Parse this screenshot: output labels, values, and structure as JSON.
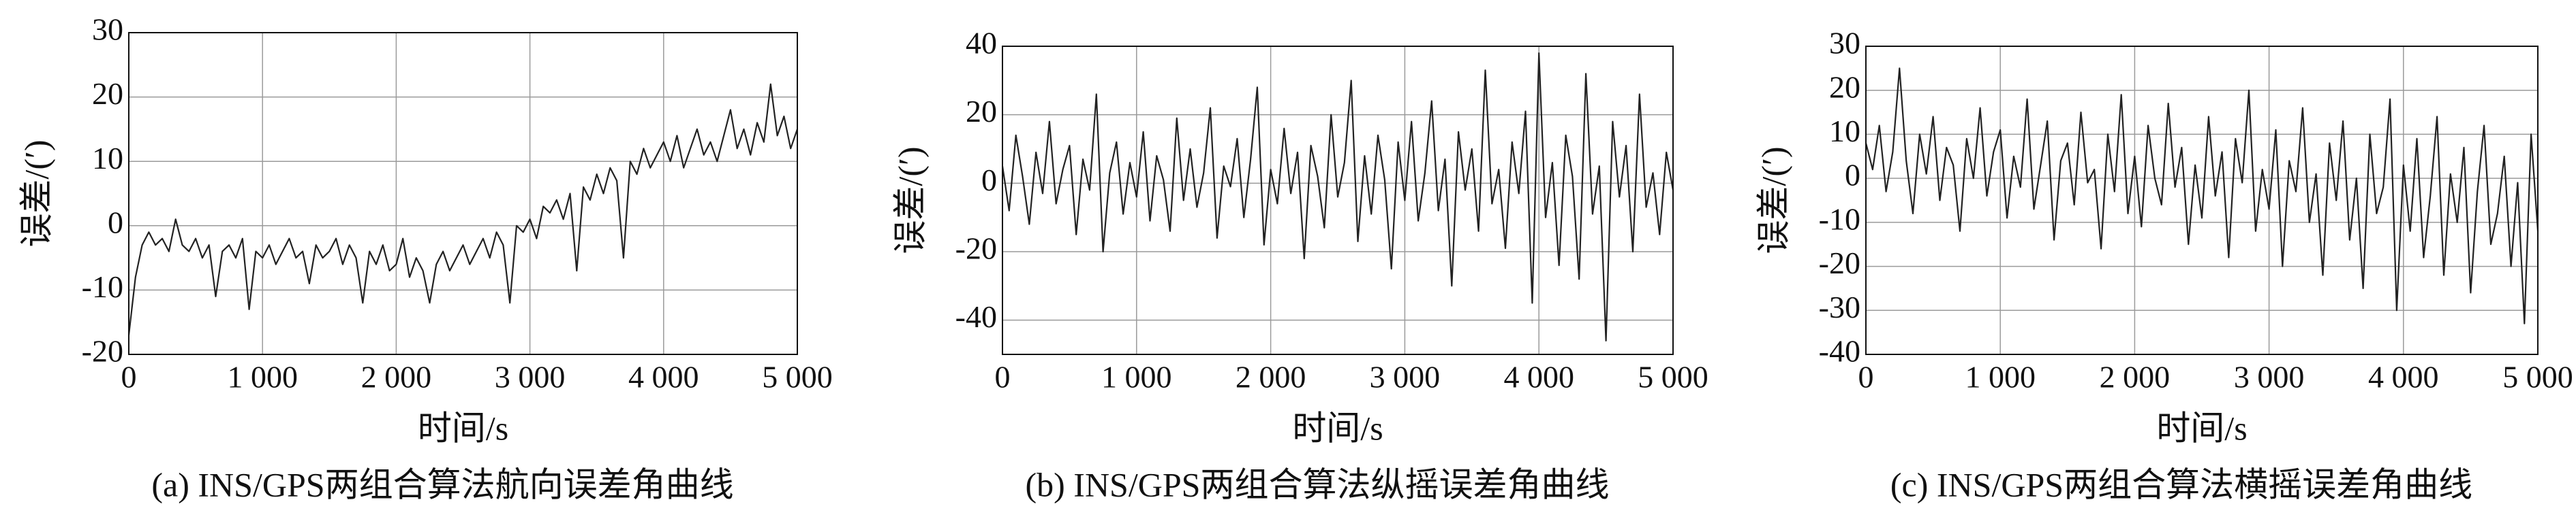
{
  "chart_data": [
    {
      "type": "line",
      "caption": "(a) INS/GPS两组合算法航向误差角曲线",
      "xlabel": "时间/s",
      "ylabel": "误差/(′)",
      "color": "#222222",
      "grid": true,
      "xlim": [
        0,
        5000
      ],
      "xticks": [
        0,
        {
          "value": 1000,
          "label": "1 000"
        },
        {
          "value": 2000,
          "label": "2 000"
        },
        {
          "value": 3000,
          "label": "3 000"
        },
        {
          "value": 4000,
          "label": "4 000"
        },
        {
          "value": 5000,
          "label": "5 000"
        }
      ],
      "ylim": [
        -20,
        30
      ],
      "yticks": [
        -20,
        -10,
        0,
        10,
        20,
        30
      ],
      "x": [
        0,
        50,
        100,
        150,
        200,
        250,
        300,
        350,
        400,
        450,
        500,
        550,
        600,
        650,
        700,
        750,
        800,
        850,
        900,
        950,
        1000,
        1050,
        1100,
        1150,
        1200,
        1250,
        1300,
        1350,
        1400,
        1450,
        1500,
        1550,
        1600,
        1650,
        1700,
        1750,
        1800,
        1850,
        1900,
        1950,
        2000,
        2050,
        2100,
        2150,
        2200,
        2250,
        2300,
        2350,
        2400,
        2450,
        2500,
        2550,
        2600,
        2650,
        2700,
        2750,
        2800,
        2850,
        2900,
        2950,
        3000,
        3050,
        3100,
        3150,
        3200,
        3250,
        3300,
        3350,
        3400,
        3450,
        3500,
        3550,
        3600,
        3650,
        3700,
        3750,
        3800,
        3850,
        3900,
        3950,
        4000,
        4050,
        4100,
        4150,
        4200,
        4250,
        4300,
        4350,
        4400,
        4450,
        4500,
        4550,
        4600,
        4650,
        4700,
        4750,
        4800,
        4850,
        4900,
        4950,
        5000
      ],
      "values": [
        -17,
        -8,
        -3,
        -1,
        -3,
        -2,
        -4,
        1,
        -3,
        -4,
        -2,
        -5,
        -3,
        -11,
        -4,
        -3,
        -5,
        -2,
        -13,
        -4,
        -5,
        -3,
        -6,
        -4,
        -2,
        -5,
        -4,
        -9,
        -3,
        -5,
        -4,
        -2,
        -6,
        -3,
        -5,
        -12,
        -4,
        -6,
        -3,
        -7,
        -6,
        -2,
        -8,
        -5,
        -7,
        -12,
        -6,
        -4,
        -7,
        -5,
        -3,
        -6,
        -4,
        -2,
        -5,
        -1,
        -3,
        -12,
        0,
        -1,
        1,
        -2,
        3,
        2,
        4,
        1,
        5,
        -7,
        6,
        4,
        8,
        5,
        9,
        7,
        -5,
        10,
        8,
        12,
        9,
        11,
        13,
        10,
        14,
        9,
        12,
        15,
        11,
        13,
        10,
        14,
        18,
        12,
        15,
        11,
        16,
        13,
        22,
        14,
        17,
        12,
        15
      ]
    },
    {
      "type": "line",
      "caption": "(b) INS/GPS两组合算法纵摇误差角曲线",
      "xlabel": "时间/s",
      "ylabel": "误差/(′)",
      "color": "#222222",
      "grid": true,
      "xlim": [
        0,
        5000
      ],
      "xticks": [
        0,
        {
          "value": 1000,
          "label": "1 000"
        },
        {
          "value": 2000,
          "label": "2 000"
        },
        {
          "value": 3000,
          "label": "3 000"
        },
        {
          "value": 4000,
          "label": "4 000"
        },
        {
          "value": 5000,
          "label": "5 000"
        }
      ],
      "ylim": [
        -50,
        40
      ],
      "yticks": [
        -40,
        -20,
        0,
        20,
        40
      ],
      "x": [
        0,
        50,
        100,
        150,
        200,
        250,
        300,
        350,
        400,
        450,
        500,
        550,
        600,
        650,
        700,
        750,
        800,
        850,
        900,
        950,
        1000,
        1050,
        1100,
        1150,
        1200,
        1250,
        1300,
        1350,
        1400,
        1450,
        1500,
        1550,
        1600,
        1650,
        1700,
        1750,
        1800,
        1850,
        1900,
        1950,
        2000,
        2050,
        2100,
        2150,
        2200,
        2250,
        2300,
        2350,
        2400,
        2450,
        2500,
        2550,
        2600,
        2650,
        2700,
        2750,
        2800,
        2850,
        2900,
        2950,
        3000,
        3050,
        3100,
        3150,
        3200,
        3250,
        3300,
        3350,
        3400,
        3450,
        3500,
        3550,
        3600,
        3650,
        3700,
        3750,
        3800,
        3850,
        3900,
        3950,
        4000,
        4050,
        4100,
        4150,
        4200,
        4250,
        4300,
        4350,
        4400,
        4450,
        4500,
        4550,
        4600,
        4650,
        4700,
        4750,
        4800,
        4850,
        4900,
        4950,
        5000
      ],
      "values": [
        5,
        -8,
        14,
        2,
        -12,
        9,
        -3,
        18,
        -6,
        4,
        11,
        -15,
        7,
        -2,
        26,
        -20,
        3,
        12,
        -9,
        6,
        -4,
        15,
        -11,
        8,
        1,
        -14,
        19,
        -5,
        10,
        -7,
        3,
        22,
        -16,
        5,
        -1,
        13,
        -10,
        7,
        28,
        -18,
        4,
        -6,
        16,
        -3,
        9,
        -22,
        11,
        2,
        -13,
        20,
        -4,
        6,
        30,
        -17,
        8,
        -9,
        14,
        1,
        -25,
        12,
        -5,
        18,
        -11,
        3,
        24,
        -8,
        7,
        -30,
        15,
        -2,
        10,
        -14,
        33,
        -6,
        4,
        -19,
        12,
        -3,
        21,
        -35,
        38,
        -10,
        6,
        -24,
        14,
        2,
        -28,
        32,
        -9,
        5,
        -46,
        18,
        -4,
        11,
        -20,
        26,
        -7,
        3,
        -15,
        9,
        -2
      ]
    },
    {
      "type": "line",
      "caption": "(c) INS/GPS两组合算法横摇误差角曲线",
      "xlabel": "时间/s",
      "ylabel": "误差/(′)",
      "color": "#222222",
      "grid": true,
      "xlim": [
        0,
        5000
      ],
      "xticks": [
        0,
        {
          "value": 1000,
          "label": "1 000"
        },
        {
          "value": 2000,
          "label": "2 000"
        },
        {
          "value": 3000,
          "label": "3 000"
        },
        {
          "value": 4000,
          "label": "4 000"
        },
        {
          "value": 5000,
          "label": "5 000"
        }
      ],
      "ylim": [
        -40,
        30
      ],
      "yticks": [
        -40,
        -30,
        -20,
        -10,
        0,
        10,
        20,
        30
      ],
      "x": [
        0,
        50,
        100,
        150,
        200,
        250,
        300,
        350,
        400,
        450,
        500,
        550,
        600,
        650,
        700,
        750,
        800,
        850,
        900,
        950,
        1000,
        1050,
        1100,
        1150,
        1200,
        1250,
        1300,
        1350,
        1400,
        1450,
        1500,
        1550,
        1600,
        1650,
        1700,
        1750,
        1800,
        1850,
        1900,
        1950,
        2000,
        2050,
        2100,
        2150,
        2200,
        2250,
        2300,
        2350,
        2400,
        2450,
        2500,
        2550,
        2600,
        2650,
        2700,
        2750,
        2800,
        2850,
        2900,
        2950,
        3000,
        3050,
        3100,
        3150,
        3200,
        3250,
        3300,
        3350,
        3400,
        3450,
        3500,
        3550,
        3600,
        3650,
        3700,
        3750,
        3800,
        3850,
        3900,
        3950,
        4000,
        4050,
        4100,
        4150,
        4200,
        4250,
        4300,
        4350,
        4400,
        4450,
        4500,
        4550,
        4600,
        4650,
        4700,
        4750,
        4800,
        4850,
        4900,
        4950,
        5000
      ],
      "values": [
        8,
        2,
        12,
        -3,
        6,
        25,
        4,
        -8,
        10,
        1,
        14,
        -5,
        7,
        3,
        -12,
        9,
        0,
        16,
        -4,
        6,
        11,
        -9,
        5,
        -2,
        18,
        -7,
        3,
        13,
        -14,
        4,
        8,
        -6,
        15,
        -1,
        2,
        -16,
        10,
        -3,
        19,
        -8,
        5,
        -11,
        12,
        0,
        -6,
        17,
        -2,
        7,
        -15,
        3,
        -9,
        14,
        -4,
        6,
        -18,
        9,
        -1,
        20,
        -12,
        2,
        -7,
        11,
        -20,
        4,
        -3,
        16,
        -10,
        1,
        -22,
        8,
        -5,
        13,
        -14,
        0,
        -25,
        10,
        -8,
        -2,
        18,
        -30,
        3,
        -12,
        9,
        -18,
        -4,
        14,
        -22,
        1,
        -10,
        7,
        -26,
        -3,
        12,
        -15,
        -8,
        5,
        -20,
        -1,
        -33,
        10,
        -12
      ]
    }
  ]
}
